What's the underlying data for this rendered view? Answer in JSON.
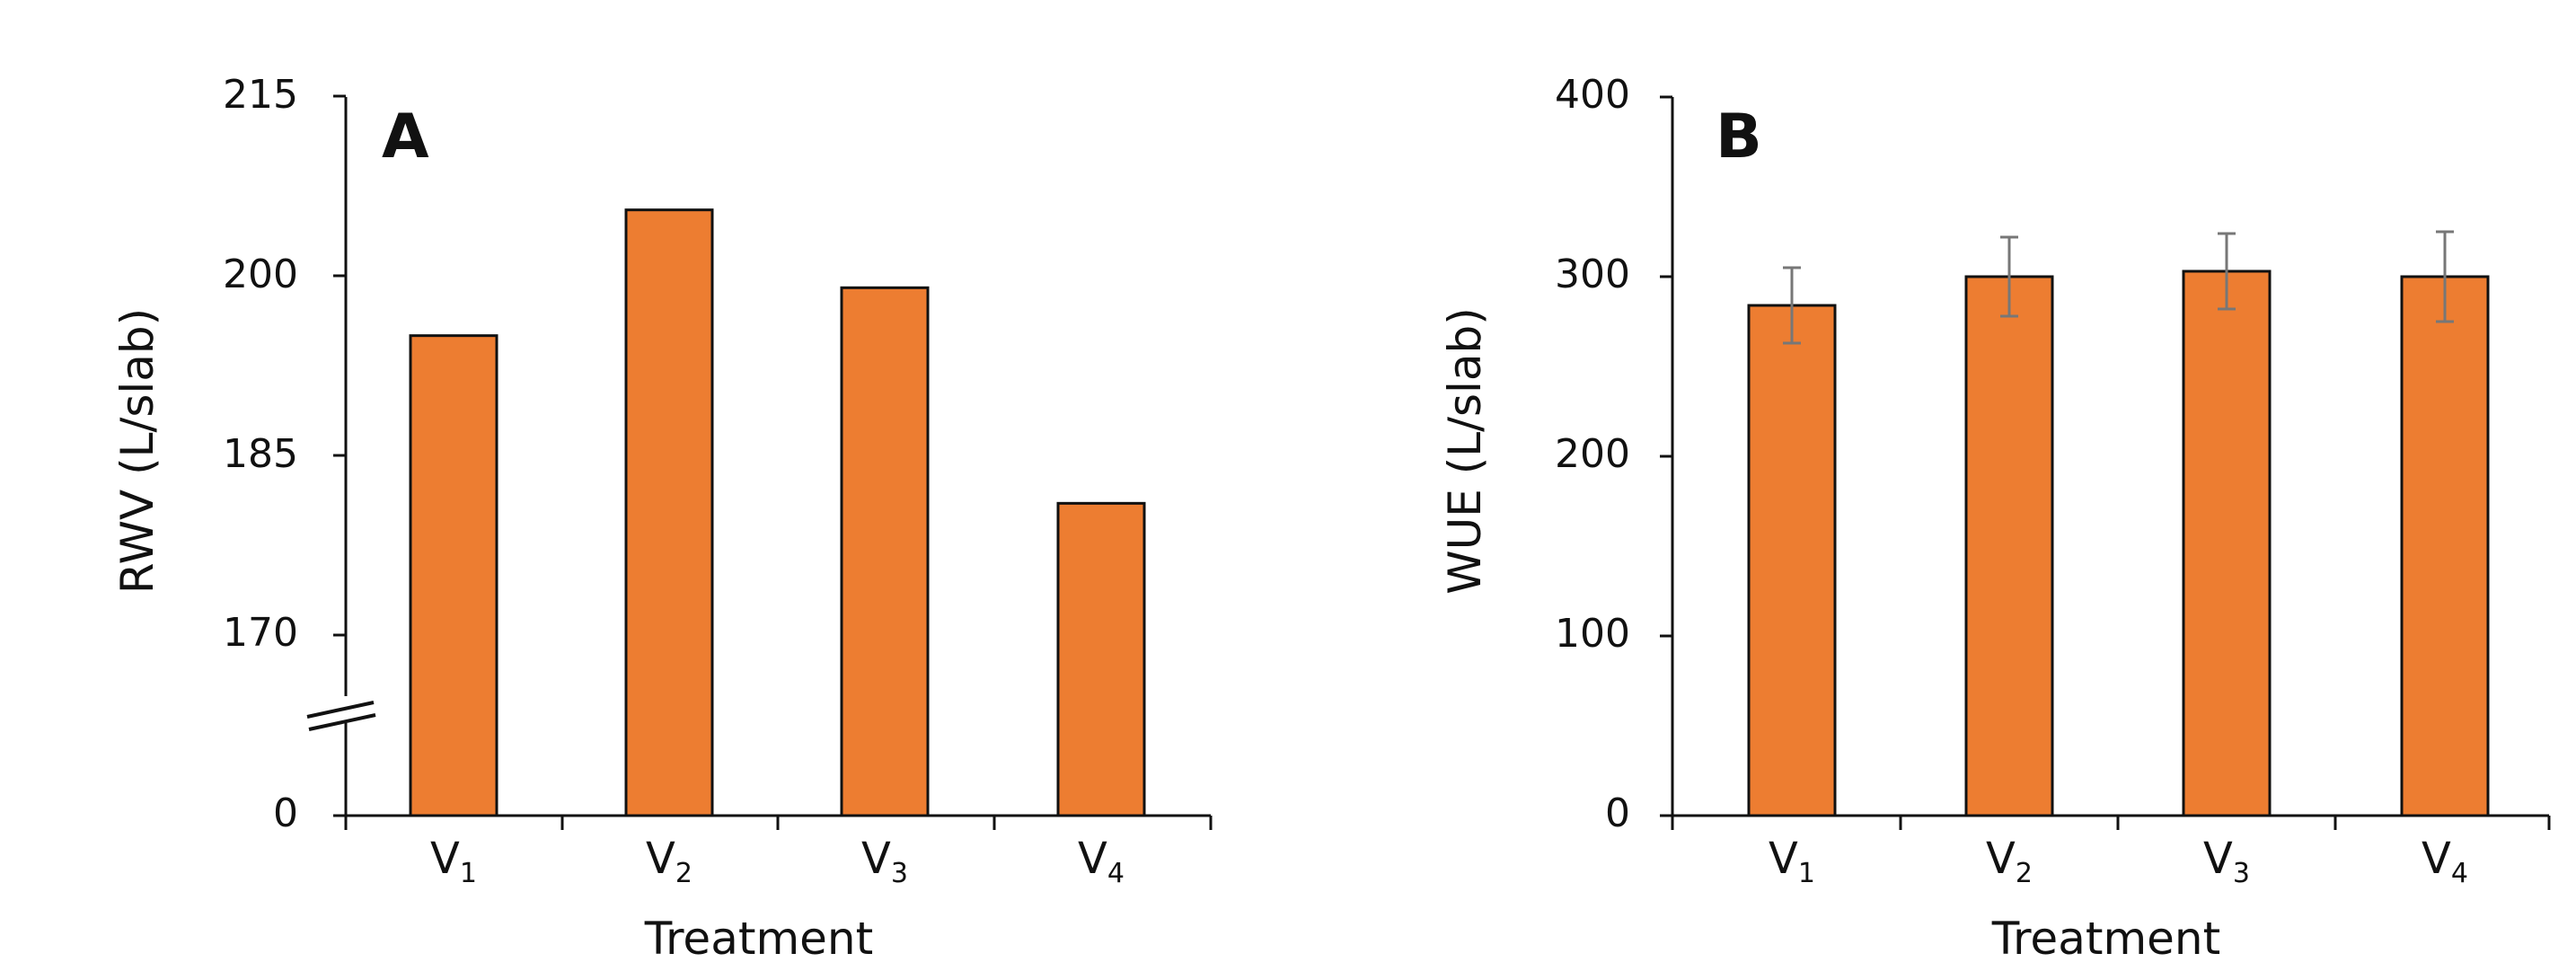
{
  "chart_data": [
    {
      "type": "bar",
      "panel_label": "A",
      "categories": [
        {
          "main": "V",
          "sub": "1"
        },
        {
          "main": "V",
          "sub": "2"
        },
        {
          "main": "V",
          "sub": "3"
        },
        {
          "main": "V",
          "sub": "4"
        }
      ],
      "values": [
        195,
        205.5,
        199,
        181
      ],
      "error": null,
      "xlabel": "Treatment",
      "ylabel": "RWV (L/slab)",
      "yticks": [
        "0",
        "170",
        "185",
        "200",
        "215"
      ],
      "ylim": [
        0,
        215
      ],
      "axis_break": true,
      "grid": false,
      "bar_color": "#ed7d31"
    },
    {
      "type": "bar",
      "panel_label": "B",
      "categories": [
        {
          "main": "V",
          "sub": "1"
        },
        {
          "main": "V",
          "sub": "2"
        },
        {
          "main": "V",
          "sub": "3"
        },
        {
          "main": "V",
          "sub": "4"
        }
      ],
      "values": [
        284,
        300,
        303,
        300
      ],
      "error": [
        21,
        22,
        21,
        25
      ],
      "xlabel": "Treatment",
      "ylabel": "WUE (L/slab)",
      "yticks": [
        "0",
        "100",
        "200",
        "300",
        "400"
      ],
      "ylim": [
        0,
        400
      ],
      "axis_break": false,
      "grid": false,
      "bar_color": "#ed7d31",
      "error_color": "#777777"
    }
  ]
}
